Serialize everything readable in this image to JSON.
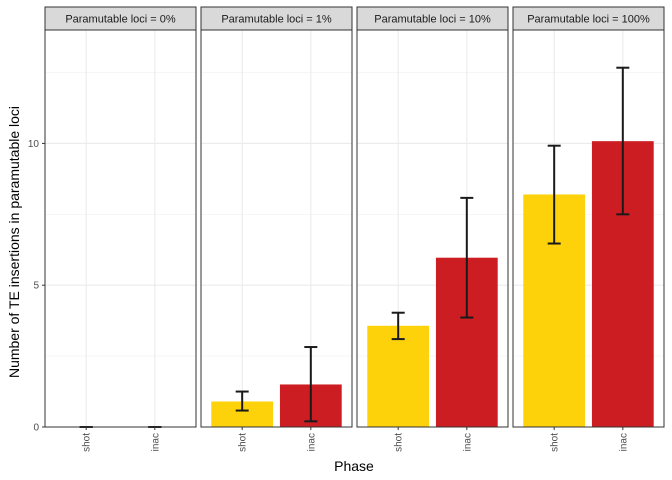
{
  "chart_data": {
    "type": "bar",
    "xlabel": "Phase",
    "ylabel": "Number of TE insertions in paramutable loci",
    "ylim": [
      0,
      14
    ],
    "yticks": [
      0,
      5,
      10
    ],
    "categories": [
      "shot",
      "inac"
    ],
    "colors": {
      "shot": "#FDD20B",
      "inac": "#CC1E22"
    },
    "grid": true,
    "panels": [
      {
        "title": "Paramutable loci = 0%",
        "bars": [
          {
            "category": "shot",
            "value": 0.0,
            "err_low": 0.0,
            "err_high": 0.0
          },
          {
            "category": "inac",
            "value": 0.0,
            "err_low": 0.0,
            "err_high": 0.0
          }
        ]
      },
      {
        "title": "Paramutable loci = 1%",
        "bars": [
          {
            "category": "shot",
            "value": 0.9,
            "err_low": 0.58,
            "err_high": 1.25
          },
          {
            "category": "inac",
            "value": 1.5,
            "err_low": 0.2,
            "err_high": 2.82
          }
        ]
      },
      {
        "title": "Paramutable loci = 10%",
        "bars": [
          {
            "category": "shot",
            "value": 3.57,
            "err_low": 3.1,
            "err_high": 4.03
          },
          {
            "category": "inac",
            "value": 5.97,
            "err_low": 3.86,
            "err_high": 8.08
          }
        ]
      },
      {
        "title": "Paramutable loci = 100%",
        "bars": [
          {
            "category": "shot",
            "value": 8.2,
            "err_low": 6.47,
            "err_high": 9.92
          },
          {
            "category": "inac",
            "value": 10.08,
            "err_low": 7.5,
            "err_high": 12.67
          }
        ]
      }
    ]
  }
}
